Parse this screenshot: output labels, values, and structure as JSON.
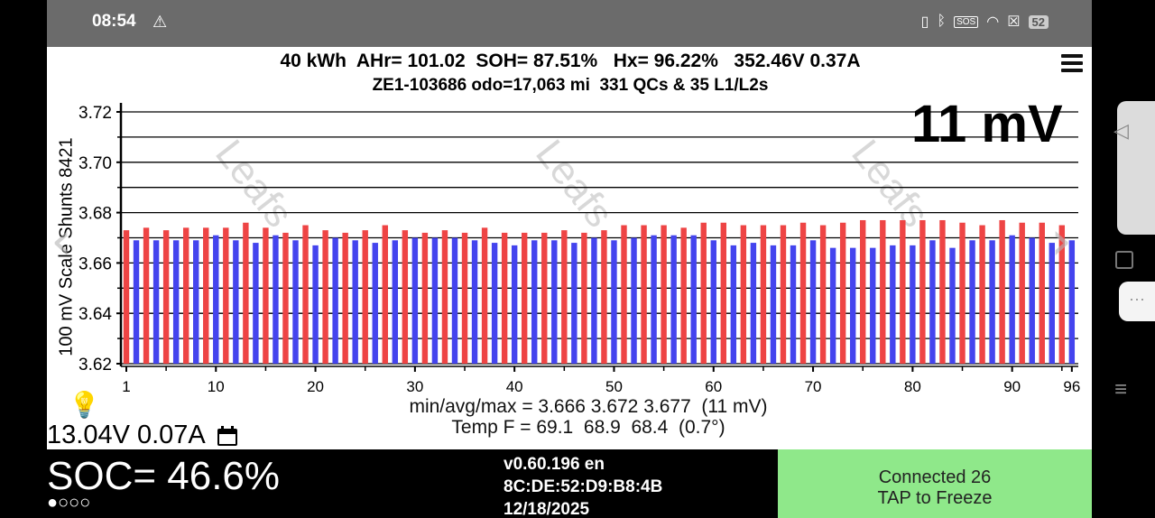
{
  "status_bar": {
    "time": "08:54",
    "warning_icon": "warning-triangle-icon",
    "icons": [
      "vibrate-icon",
      "bluetooth-icon",
      "sos-icon",
      "wifi-icon",
      "close-box-icon"
    ],
    "sos_label": "SOS",
    "battery_level": "52"
  },
  "header": {
    "line1": "40 kWh  AHr= 101.02  SOH= 87.51%   Hx= 96.22%   352.46V 0.37A",
    "line2": "ZE1-103686 odo=17,063 mi  331 QCs & 35 L1/L2s"
  },
  "big_readout": "11 mV",
  "stats": {
    "line1": "min/avg/max = 3.666 3.672 3.677  (11 mV)",
    "line2": "Temp F = 69.1  68.9  68.4  (0.7°)"
  },
  "voltage_readout": "13.04V 0.07A",
  "soc": "SOC= 46.6%",
  "dots": "●○○○",
  "version": {
    "line1": "v0.60.196 en",
    "line2": "8C:DE:52:D9:B8:4B",
    "line3": "12/18/2025"
  },
  "connection": {
    "line1": "Connected 26",
    "line2": "TAP to Freeze"
  },
  "watermark": "Leafs",
  "colors": {
    "odd_cell": "#ee4444",
    "even_cell": "#4444ee",
    "connect_bg": "#8fe88a",
    "status_bg": "#6b6b6b"
  },
  "chart_data": {
    "type": "bar",
    "title": "",
    "xlabel": "",
    "ylabel": "100 mV Scale Shunts 8421",
    "ylim": [
      3.62,
      3.72
    ],
    "yticks": [
      3.62,
      3.64,
      3.66,
      3.68,
      3.7,
      3.72
    ],
    "ytick_labels": [
      "3.62",
      "3.64",
      "3.66",
      "3.68",
      "3.70",
      "3.72"
    ],
    "xtick_labels": [
      "1",
      "10",
      "20",
      "30",
      "40",
      "50",
      "60",
      "70",
      "80",
      "90",
      "96"
    ],
    "xticks": [
      1,
      10,
      20,
      30,
      40,
      50,
      60,
      70,
      80,
      90,
      96
    ],
    "grid": true,
    "x": [
      1,
      2,
      3,
      4,
      5,
      6,
      7,
      8,
      9,
      10,
      11,
      12,
      13,
      14,
      15,
      16,
      17,
      18,
      19,
      20,
      21,
      22,
      23,
      24,
      25,
      26,
      27,
      28,
      29,
      30,
      31,
      32,
      33,
      34,
      35,
      36,
      37,
      38,
      39,
      40,
      41,
      42,
      43,
      44,
      45,
      46,
      47,
      48,
      49,
      50,
      51,
      52,
      53,
      54,
      55,
      56,
      57,
      58,
      59,
      60,
      61,
      62,
      63,
      64,
      65,
      66,
      67,
      68,
      69,
      70,
      71,
      72,
      73,
      74,
      75,
      76,
      77,
      78,
      79,
      80,
      81,
      82,
      83,
      84,
      85,
      86,
      87,
      88,
      89,
      90,
      91,
      92,
      93,
      94,
      95,
      96
    ],
    "values": [
      3.673,
      3.669,
      3.674,
      3.669,
      3.673,
      3.669,
      3.674,
      3.669,
      3.674,
      3.671,
      3.674,
      3.669,
      3.676,
      3.668,
      3.674,
      3.671,
      3.672,
      3.669,
      3.675,
      3.667,
      3.673,
      3.67,
      3.672,
      3.669,
      3.673,
      3.668,
      3.675,
      3.669,
      3.673,
      3.67,
      3.672,
      3.67,
      3.673,
      3.67,
      3.672,
      3.669,
      3.674,
      3.668,
      3.672,
      3.667,
      3.672,
      3.669,
      3.672,
      3.669,
      3.673,
      3.668,
      3.672,
      3.67,
      3.673,
      3.669,
      3.675,
      3.67,
      3.675,
      3.671,
      3.675,
      3.671,
      3.674,
      3.671,
      3.676,
      3.669,
      3.676,
      3.667,
      3.675,
      3.668,
      3.675,
      3.667,
      3.675,
      3.667,
      3.676,
      3.669,
      3.675,
      3.666,
      3.676,
      3.666,
      3.677,
      3.666,
      3.677,
      3.667,
      3.677,
      3.667,
      3.677,
      3.669,
      3.677,
      3.666,
      3.676,
      3.669,
      3.675,
      3.669,
      3.677,
      3.671,
      3.676,
      3.67,
      3.676,
      3.668,
      3.675,
      3.669
    ]
  }
}
